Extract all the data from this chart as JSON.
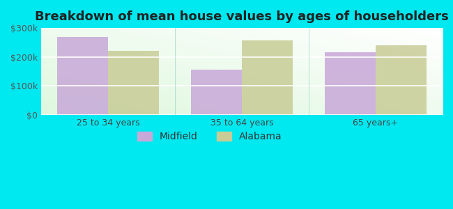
{
  "title": "Breakdown of mean house values by ages of householders",
  "categories": [
    "25 to 34 years",
    "35 to 64 years",
    "65 years+"
  ],
  "midfield_values": [
    270000,
    155000,
    215000
  ],
  "alabama_values": [
    220000,
    257000,
    240000
  ],
  "midfield_color": "#c8a8d8",
  "alabama_color": "#c8cc96",
  "background_outer": "#00e8f0",
  "ylim": [
    0,
    300000
  ],
  "yticks": [
    0,
    100000,
    200000,
    300000
  ],
  "ytick_labels": [
    "$0",
    "$100k",
    "$200k",
    "$300k"
  ],
  "legend_labels": [
    "Midfield",
    "Alabama"
  ],
  "bar_width": 0.38,
  "title_fontsize": 13,
  "tick_fontsize": 9,
  "legend_fontsize": 10
}
